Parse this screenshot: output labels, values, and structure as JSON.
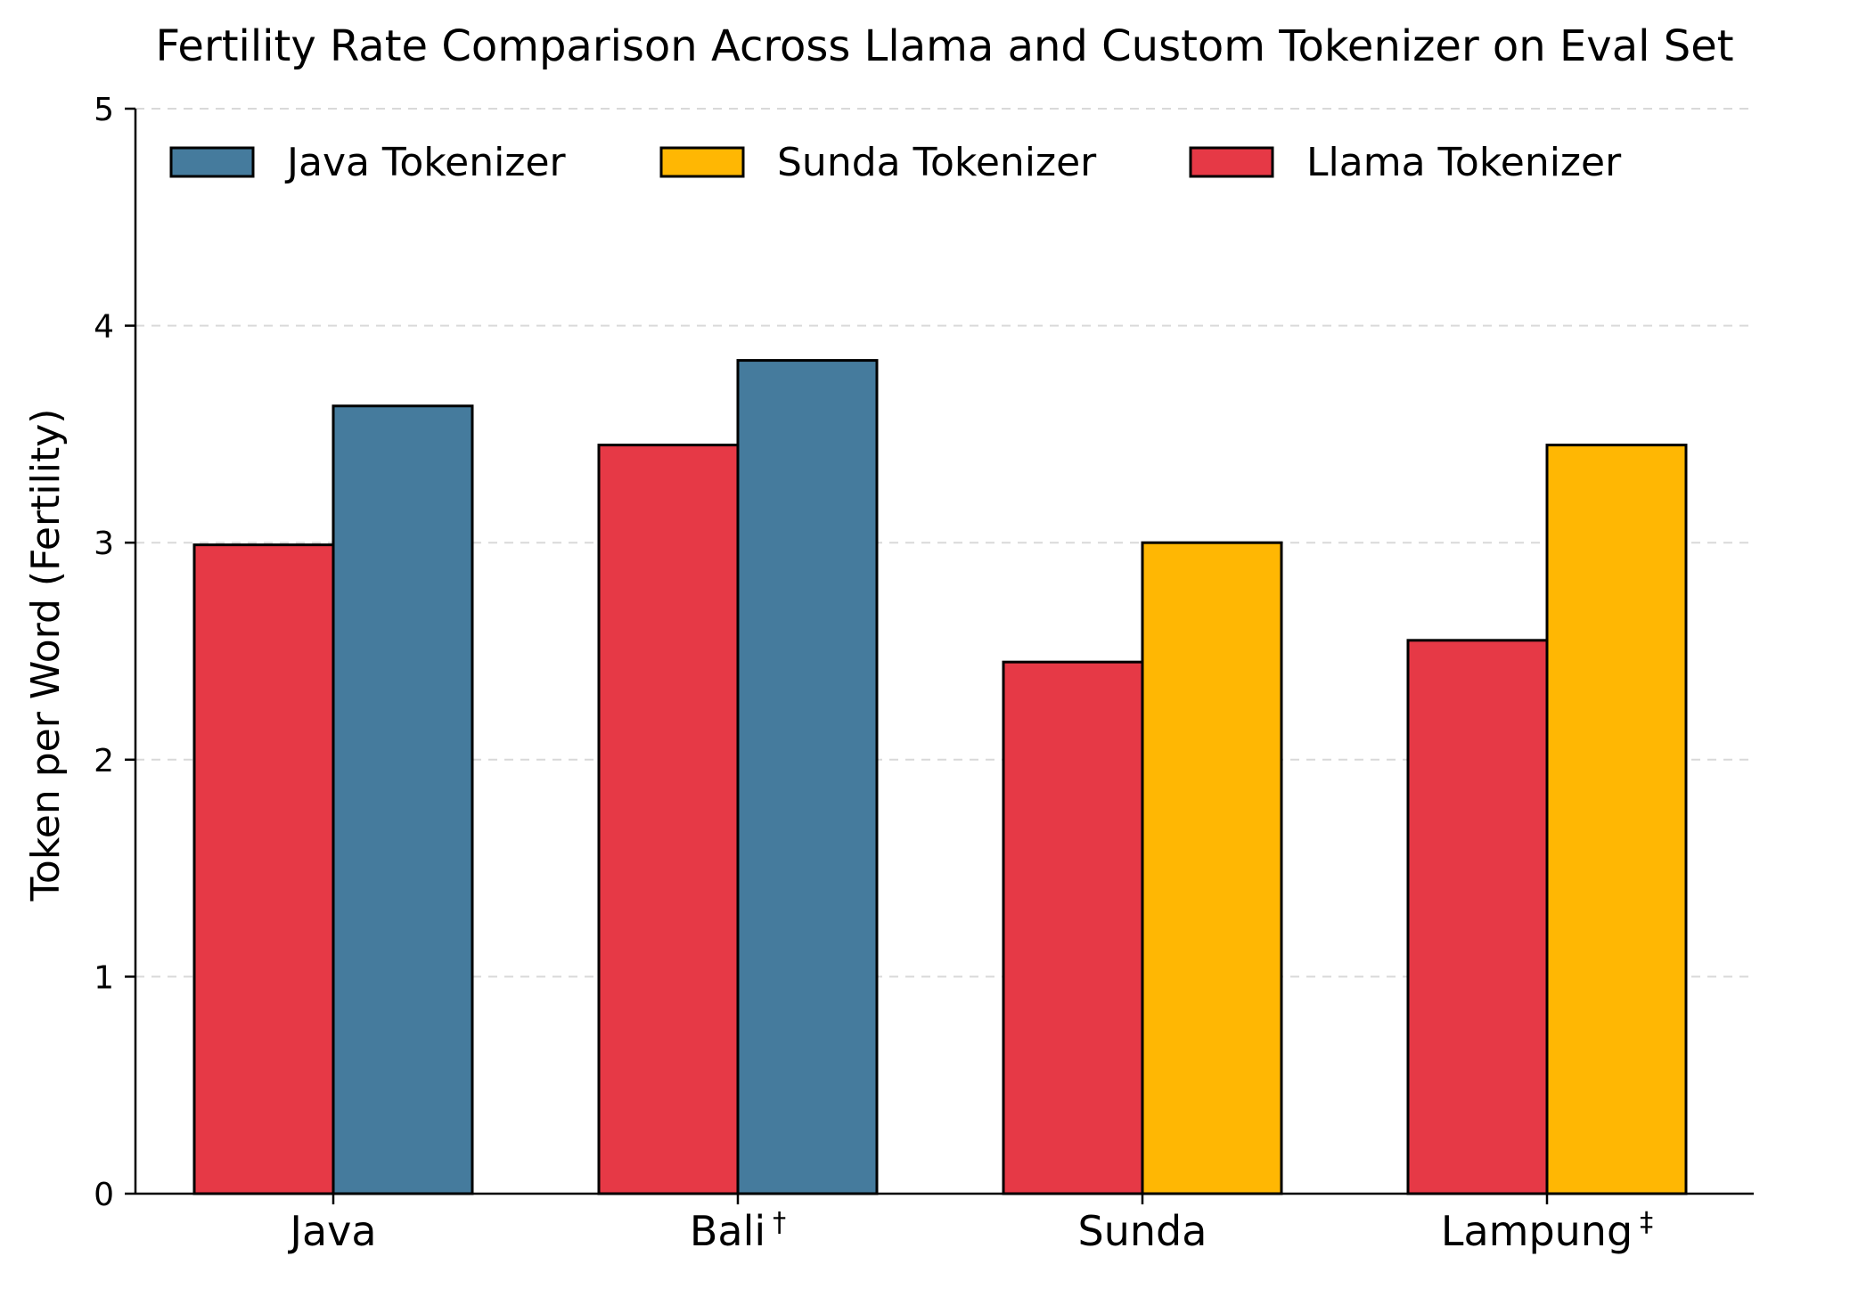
{
  "chart_data": {
    "type": "bar",
    "title": "Fertility Rate Comparison Across Llama and Custom Tokenizer on Eval Set",
    "xlabel": "",
    "ylabel": "Token per Word (Fertility)",
    "ylim": [
      0,
      5
    ],
    "yticks": [
      "0",
      "1",
      "2",
      "3",
      "4",
      "5"
    ],
    "grid": "horizontal dashed",
    "legend_position": "top-left",
    "categories": [
      {
        "name": "Java",
        "mark": ""
      },
      {
        "name": "Bali",
        "mark": "†"
      },
      {
        "name": "Sunda",
        "mark": ""
      },
      {
        "name": "Lampung",
        "mark": "‡"
      }
    ],
    "legend": [
      {
        "label": "Java Tokenizer",
        "color": "#457b9d"
      },
      {
        "label": "Sunda Tokenizer",
        "color": "#ffb703"
      },
      {
        "label": "Llama Tokenizer",
        "color": "#e63946"
      }
    ],
    "bars": [
      {
        "category": "Java",
        "series": "Llama Tokenizer",
        "value": 2.99,
        "color": "#e63946"
      },
      {
        "category": "Java",
        "series": "Java Tokenizer",
        "value": 3.63,
        "color": "#457b9d"
      },
      {
        "category": "Bali",
        "series": "Llama Tokenizer",
        "value": 3.45,
        "color": "#e63946"
      },
      {
        "category": "Bali",
        "series": "Java Tokenizer",
        "value": 3.84,
        "color": "#457b9d"
      },
      {
        "category": "Sunda",
        "series": "Llama Tokenizer",
        "value": 2.45,
        "color": "#e63946"
      },
      {
        "category": "Sunda",
        "series": "Sunda Tokenizer",
        "value": 3.0,
        "color": "#ffb703"
      },
      {
        "category": "Lampung",
        "series": "Llama Tokenizer",
        "value": 2.55,
        "color": "#e63946"
      },
      {
        "category": "Lampung",
        "series": "Sunda Tokenizer",
        "value": 3.45,
        "color": "#ffb703"
      }
    ]
  }
}
